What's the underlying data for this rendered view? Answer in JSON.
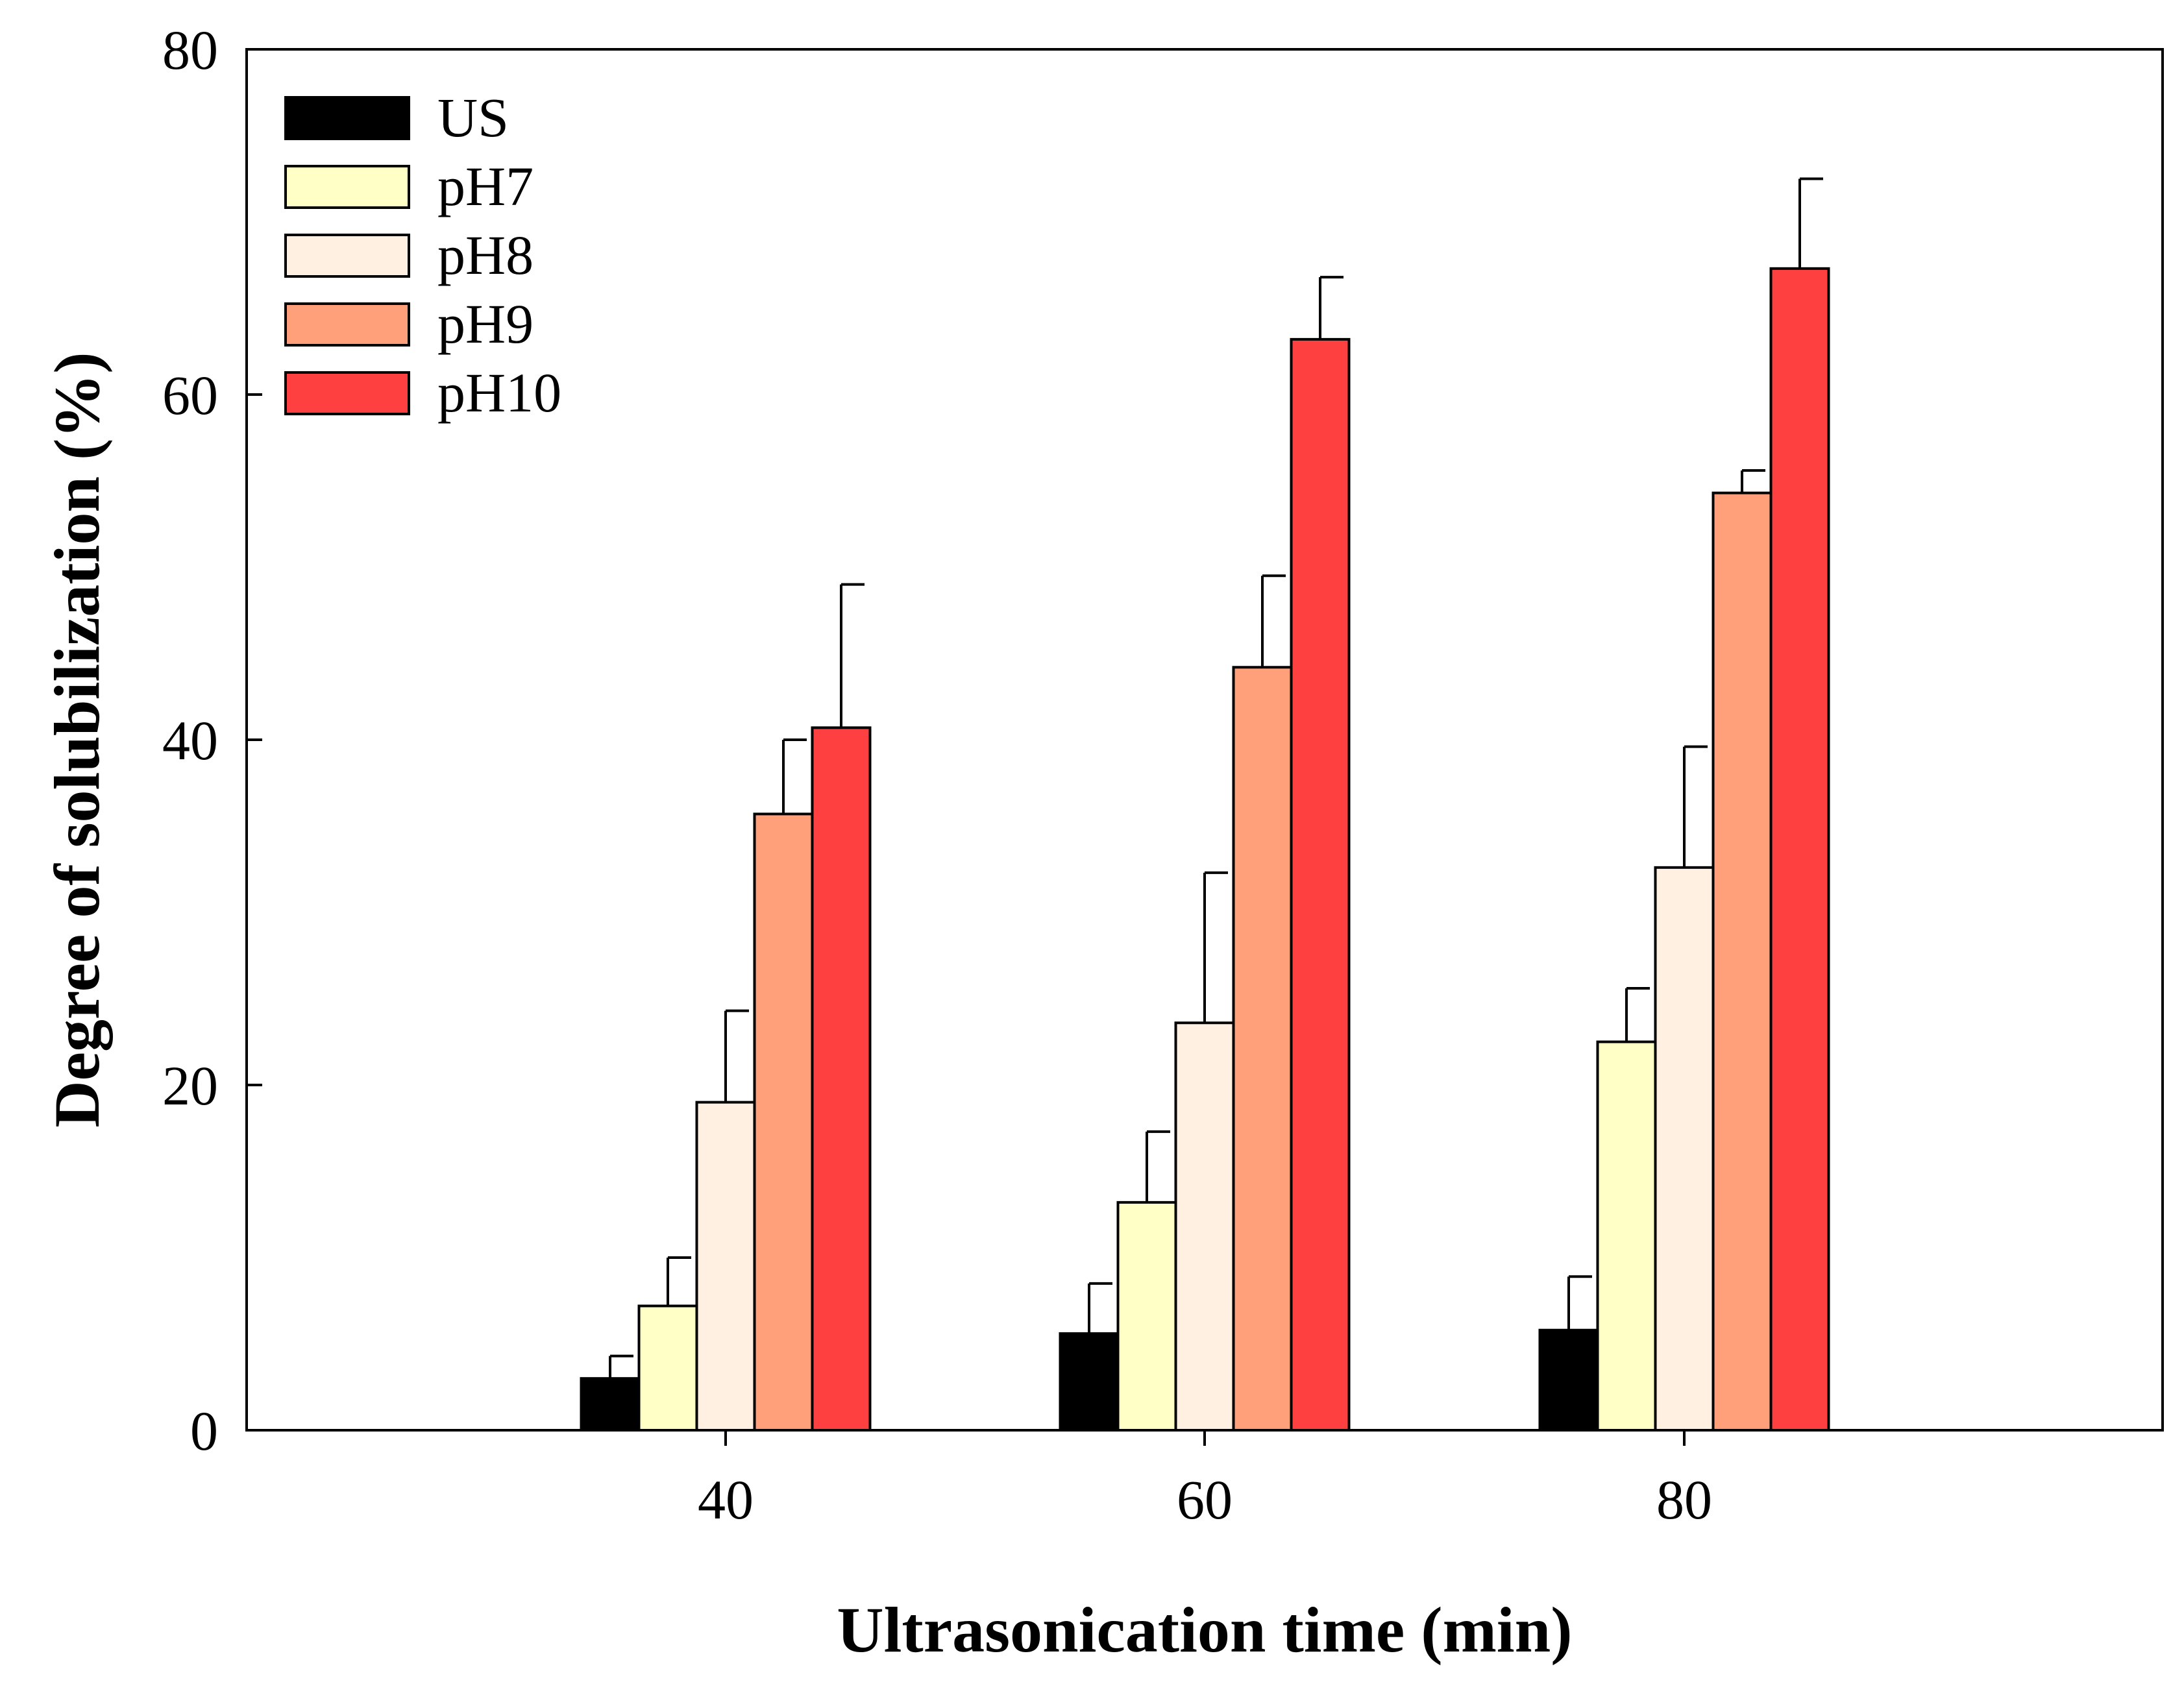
{
  "chart_data": {
    "type": "bar",
    "title": "",
    "xlabel": "Ultrasonication time (min)",
    "ylabel": "Degree of solubilization (%)",
    "categories": [
      "40",
      "60",
      "80"
    ],
    "ylim": [
      0,
      80
    ],
    "yticks": [
      "0",
      "20",
      "40",
      "60",
      "80"
    ],
    "legend_position": "top-left",
    "grid": false,
    "series": [
      {
        "name": "US",
        "color": "#000000",
        "values": [
          3.0,
          5.6,
          5.8
        ],
        "errors": [
          1.3,
          2.9,
          3.1
        ]
      },
      {
        "name": "pH7",
        "color": "#ffffc6",
        "values": [
          7.2,
          13.2,
          22.5
        ],
        "errors": [
          2.8,
          4.1,
          3.1
        ]
      },
      {
        "name": "pH8",
        "color": "#fff0e1",
        "values": [
          19.0,
          23.6,
          32.6
        ],
        "errors": [
          5.3,
          8.7,
          7.0
        ]
      },
      {
        "name": "pH9",
        "color": "#ffa07a",
        "values": [
          35.7,
          44.2,
          54.3
        ],
        "errors": [
          4.3,
          5.3,
          1.3
        ]
      },
      {
        "name": "pH10",
        "color": "#ff4040",
        "values": [
          40.7,
          63.2,
          67.3
        ],
        "errors": [
          8.3,
          3.6,
          5.2
        ]
      }
    ]
  }
}
